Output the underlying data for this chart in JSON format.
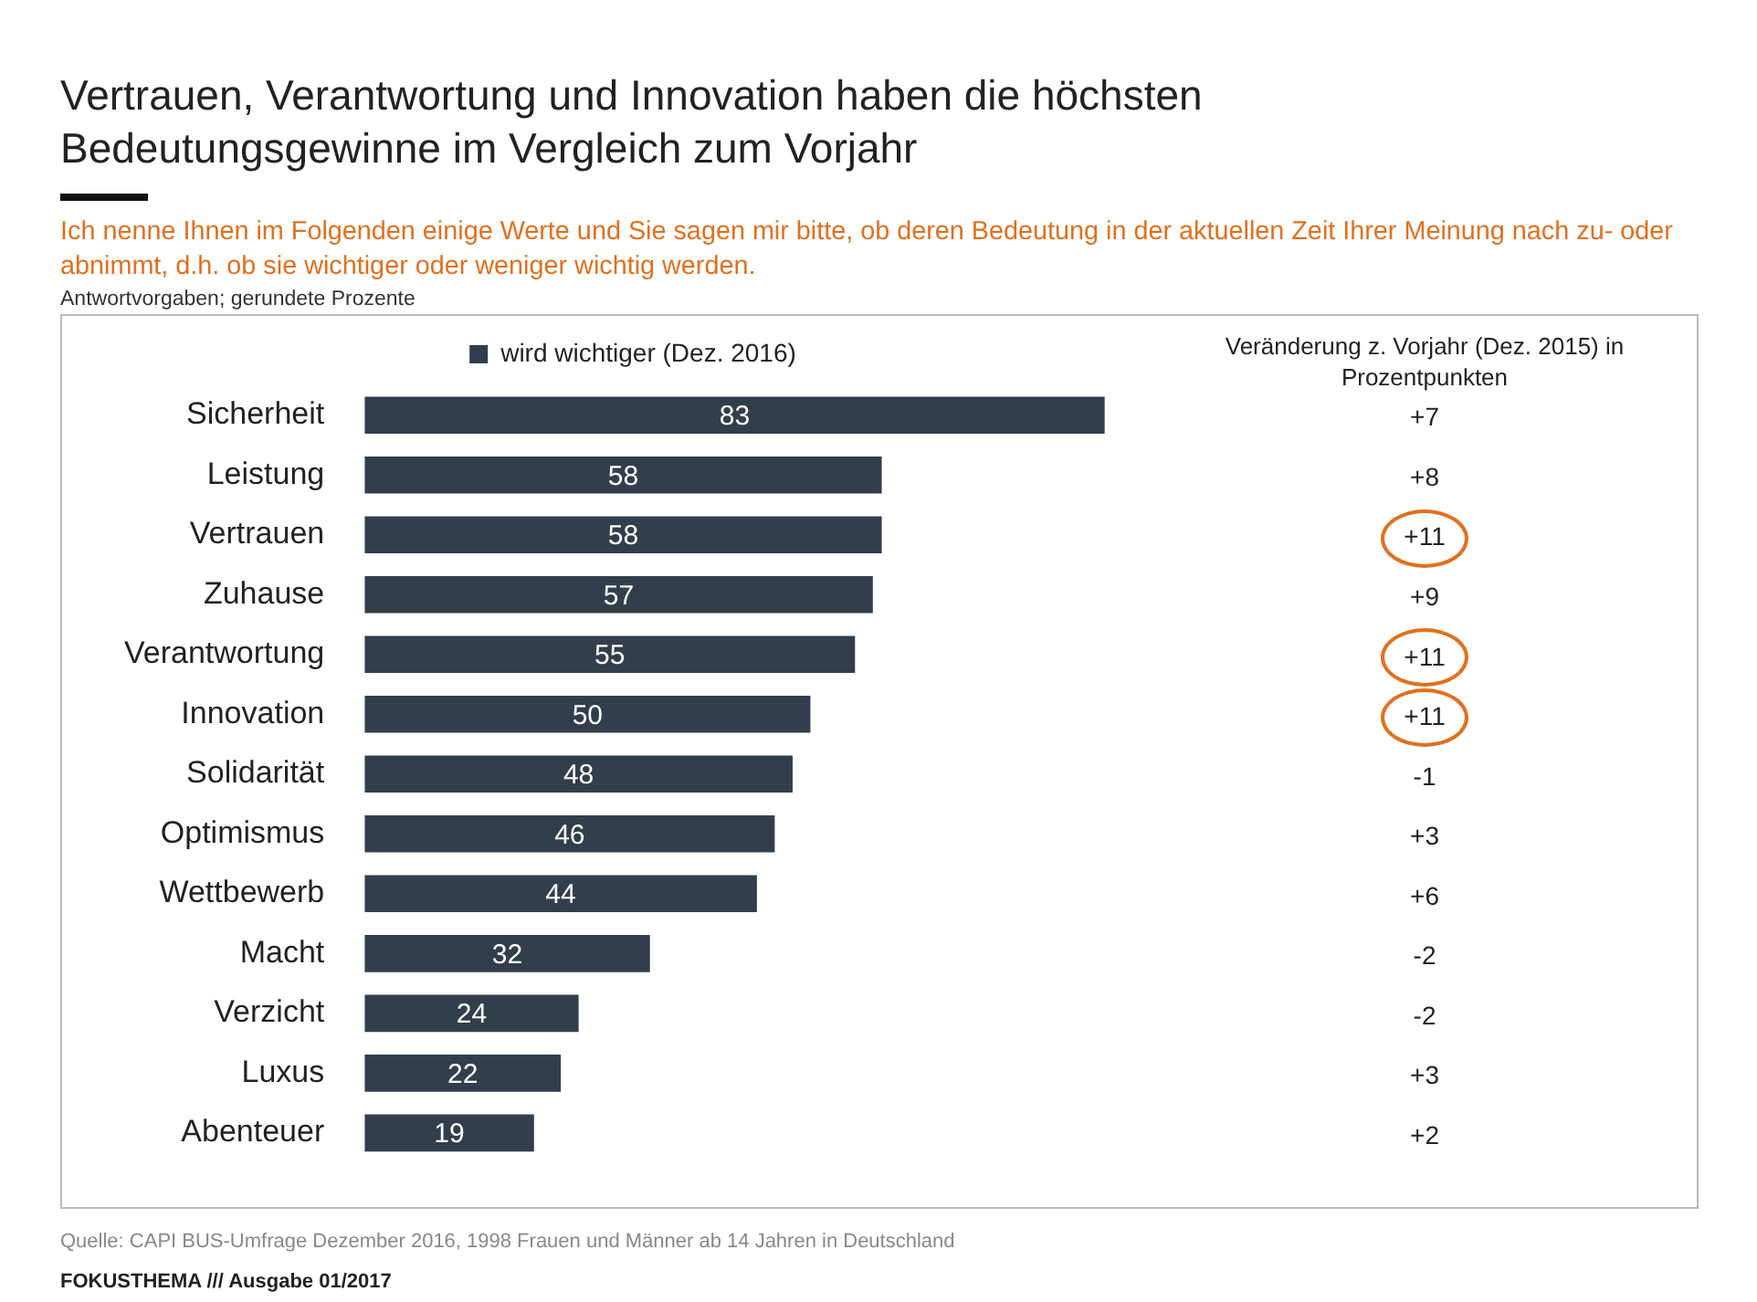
{
  "chart_data": {
    "type": "bar",
    "orientation": "horizontal",
    "title": "Vertrauen, Verantwortung und Innovation haben die höchsten Bedeutungsgewinne im Vergleich zum Vorjahr",
    "subtitle": "Ich nenne Ihnen im Folgenden einige Werte und Sie sagen mir bitte, ob deren Bedeutung in der aktuellen Zeit Ihrer Meinung nach zu- oder abnimmt, d.h. ob sie wichtiger oder weniger wichtig werden.",
    "categories": [
      "Sicherheit",
      "Leistung",
      "Vertrauen",
      "Zuhause",
      "Verantwortung",
      "Innovation",
      "Solidarität",
      "Optimismus",
      "Wettbewerb",
      "Macht",
      "Verzicht",
      "Luxus",
      "Abenteuer"
    ],
    "series": [
      {
        "name": "wird wichtiger (Dez. 2016)",
        "color": "#323e4b",
        "values": [
          83,
          58,
          58,
          57,
          55,
          50,
          48,
          46,
          44,
          32,
          24,
          22,
          19
        ]
      }
    ],
    "data_labels": true,
    "legend": "top",
    "annotations": [
      "Antwortvorgaben; gerundete Prozente",
      "Veränderung z. Vorjahr (Dez. 2015) in Prozentpunkten",
      "+7",
      "+8",
      "+11",
      "+9",
      "+11",
      "+11",
      "-1",
      "+3",
      "+6",
      "-2",
      "-2",
      "+3",
      "+2",
      "Quelle: CAPI BUS-Umfrage Dezember 2016, 1998 Frauen und Männer ab 14 Jahren in Deutschland",
      "FOKUSTHEMA /// Ausgabe 01/2017"
    ]
  }
}
